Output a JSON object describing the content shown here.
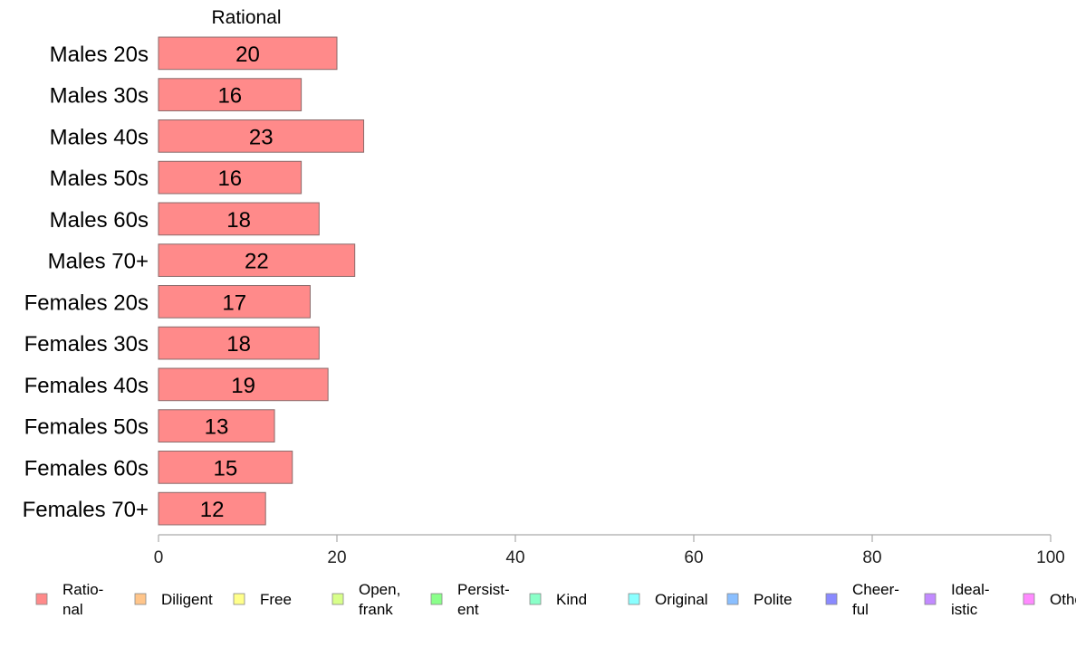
{
  "chart_data": {
    "type": "bar",
    "orientation": "horizontal",
    "title": "Rational",
    "categories": [
      "Males 20s",
      "Males 30s",
      "Males 40s",
      "Males 50s",
      "Males 60s",
      "Males 70+",
      "Females 20s",
      "Females 30s",
      "Females 40s",
      "Females 50s",
      "Females 60s",
      "Females 70+"
    ],
    "series": [
      {
        "name": "Rational",
        "values": [
          20,
          16,
          23,
          16,
          18,
          22,
          17,
          18,
          19,
          13,
          15,
          12
        ]
      }
    ],
    "xlim": [
      0,
      100
    ],
    "xticks": [
      0,
      20,
      40,
      60,
      80,
      100
    ],
    "grid": false,
    "legend_position": "bottom",
    "colors": {
      "bar_fill": "#ff8a8a",
      "bar_stroke": "#8a6a6a",
      "axis": "#aaaaaa"
    },
    "legend": [
      {
        "label": [
          "Ratio-",
          "nal"
        ],
        "color": "#ff8a8a"
      },
      {
        "label": [
          "Diligent"
        ],
        "color": "#ffc58a"
      },
      {
        "label": [
          "Free"
        ],
        "color": "#ffff8a"
      },
      {
        "label": [
          "Open,",
          "frank"
        ],
        "color": "#d8ff8a"
      },
      {
        "label": [
          "Persist-",
          "ent"
        ],
        "color": "#8aff8a"
      },
      {
        "label": [
          "Kind"
        ],
        "color": "#8affc8"
      },
      {
        "label": [
          "Original"
        ],
        "color": "#8affff"
      },
      {
        "label": [
          "Polite"
        ],
        "color": "#8abfff"
      },
      {
        "label": [
          "Cheer-",
          "ful"
        ],
        "color": "#8a8aff"
      },
      {
        "label": [
          "Ideal-",
          "istic"
        ],
        "color": "#c28aff"
      },
      {
        "label": [
          "Other"
        ],
        "color": "#ff8aff"
      }
    ]
  }
}
